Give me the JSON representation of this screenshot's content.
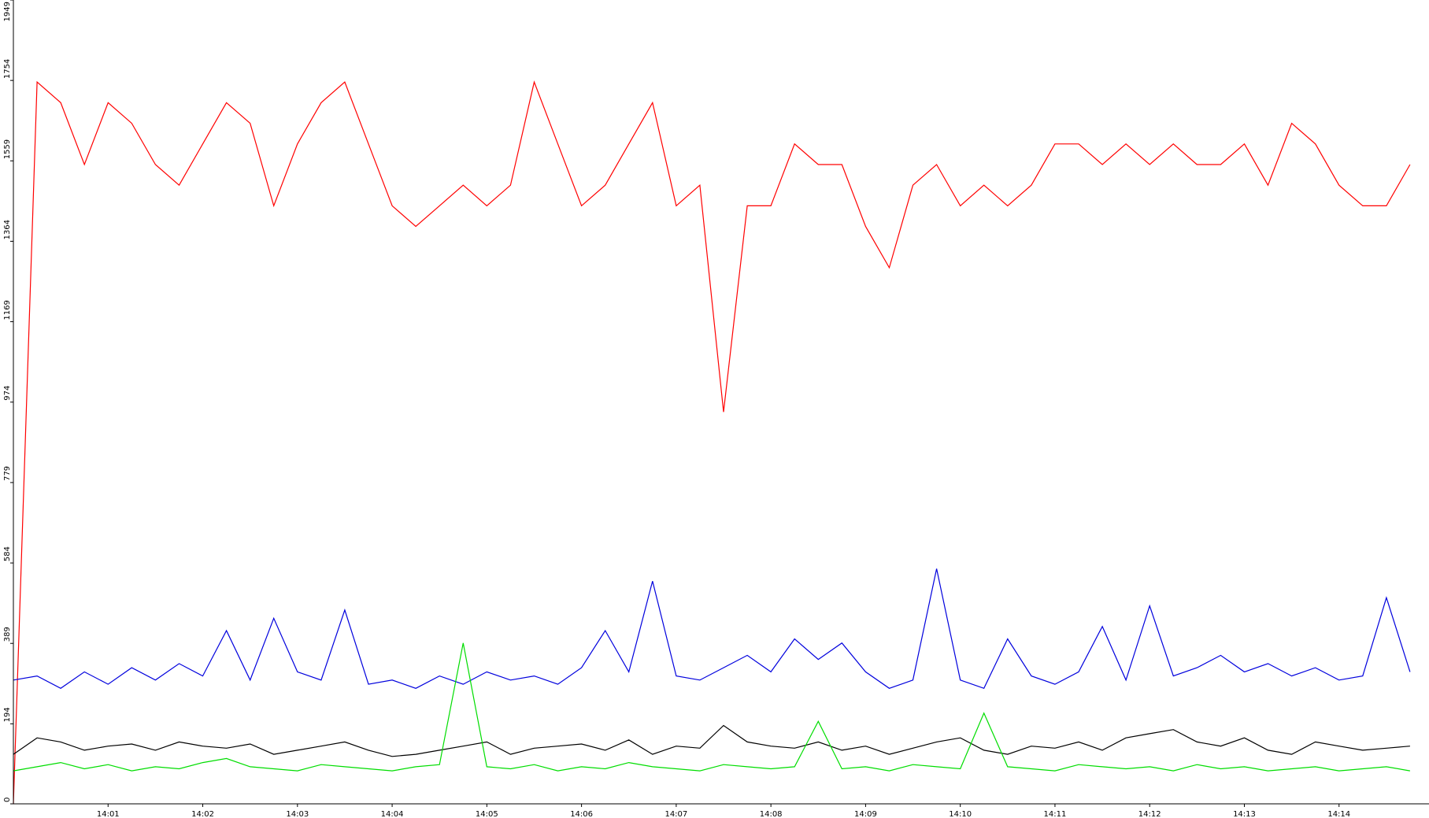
{
  "chart_data": {
    "type": "line",
    "x": [
      0,
      0.25,
      0.5,
      0.75,
      1,
      1.25,
      1.5,
      1.75,
      2,
      2.25,
      2.5,
      2.75,
      3,
      3.25,
      3.5,
      3.75,
      4,
      4.25,
      4.5,
      4.75,
      5,
      5.25,
      5.5,
      5.75,
      6,
      6.25,
      6.5,
      6.75,
      7,
      7.25,
      7.5,
      7.75,
      8,
      8.25,
      8.5,
      8.75,
      9,
      9.25,
      9.5,
      9.75,
      10,
      10.25,
      10.5,
      10.75,
      11,
      11.25,
      11.5,
      11.75,
      12,
      12.25,
      12.5,
      12.75,
      13,
      13.25,
      13.5,
      13.75,
      14,
      14.25,
      14.5,
      14.75
    ],
    "series": [
      {
        "color": "#ff0000",
        "values": [
          0,
          1750,
          1700,
          1550,
          1700,
          1650,
          1550,
          1500,
          1600,
          1700,
          1650,
          1450,
          1600,
          1700,
          1750,
          1600,
          1450,
          1400,
          1450,
          1500,
          1450,
          1500,
          1750,
          1600,
          1450,
          1500,
          1600,
          1700,
          1450,
          1500,
          950,
          1450,
          1450,
          1600,
          1550,
          1550,
          1400,
          1300,
          1500,
          1550,
          1450,
          1500,
          1450,
          1500,
          1600,
          1600,
          1550,
          1600,
          1550,
          1600,
          1550,
          1550,
          1600,
          1500,
          1650,
          1600,
          1500,
          1450,
          1450,
          1550
        ]
      },
      {
        "color": "#0000dd",
        "values": [
          300,
          310,
          280,
          320,
          290,
          330,
          300,
          340,
          310,
          420,
          300,
          450,
          320,
          300,
          470,
          290,
          300,
          280,
          310,
          290,
          320,
          300,
          310,
          290,
          330,
          420,
          320,
          540,
          310,
          300,
          330,
          360,
          320,
          400,
          350,
          390,
          320,
          280,
          300,
          570,
          300,
          280,
          400,
          310,
          290,
          320,
          430,
          300,
          480,
          310,
          330,
          360,
          320,
          340,
          310,
          330,
          300,
          310,
          500,
          320
        ]
      },
      {
        "color": "#000000",
        "values": [
          120,
          160,
          150,
          130,
          140,
          145,
          130,
          150,
          140,
          135,
          145,
          120,
          130,
          140,
          150,
          130,
          115,
          120,
          130,
          140,
          150,
          120,
          135,
          140,
          145,
          130,
          155,
          120,
          140,
          135,
          190,
          150,
          140,
          135,
          150,
          130,
          140,
          120,
          135,
          150,
          160,
          130,
          120,
          140,
          135,
          150,
          130,
          160,
          170,
          180,
          150,
          140,
          160,
          130,
          120,
          150,
          140,
          130,
          135,
          140
        ]
      },
      {
        "color": "#00dd00",
        "values": [
          80,
          90,
          100,
          85,
          95,
          80,
          90,
          85,
          100,
          110,
          90,
          85,
          80,
          95,
          90,
          85,
          80,
          90,
          95,
          390,
          90,
          85,
          95,
          80,
          90,
          85,
          100,
          90,
          85,
          80,
          95,
          90,
          85,
          90,
          200,
          85,
          90,
          80,
          95,
          90,
          85,
          220,
          90,
          85,
          80,
          95,
          90,
          85,
          90,
          80,
          95,
          85,
          90,
          80,
          85,
          90,
          80,
          85,
          90,
          80
        ]
      }
    ],
    "xlim": [
      0,
      14.95
    ],
    "xticks": [
      {
        "value": 1,
        "label": "14:01"
      },
      {
        "value": 2,
        "label": "14:02"
      },
      {
        "value": 3,
        "label": "14:03"
      },
      {
        "value": 4,
        "label": "14:04"
      },
      {
        "value": 5,
        "label": "14:05"
      },
      {
        "value": 6,
        "label": "14:06"
      },
      {
        "value": 7,
        "label": "14:07"
      },
      {
        "value": 8,
        "label": "14:08"
      },
      {
        "value": 9,
        "label": "14:09"
      },
      {
        "value": 10,
        "label": "14:10"
      },
      {
        "value": 11,
        "label": "14:11"
      },
      {
        "value": 12,
        "label": "14:12"
      },
      {
        "value": 13,
        "label": "14:13"
      },
      {
        "value": 14,
        "label": "14:14"
      }
    ],
    "ylim": [
      0,
      1949
    ],
    "yticks": [
      0,
      194,
      389,
      584,
      779,
      974,
      1169,
      1364,
      1559,
      1754,
      1949
    ]
  }
}
